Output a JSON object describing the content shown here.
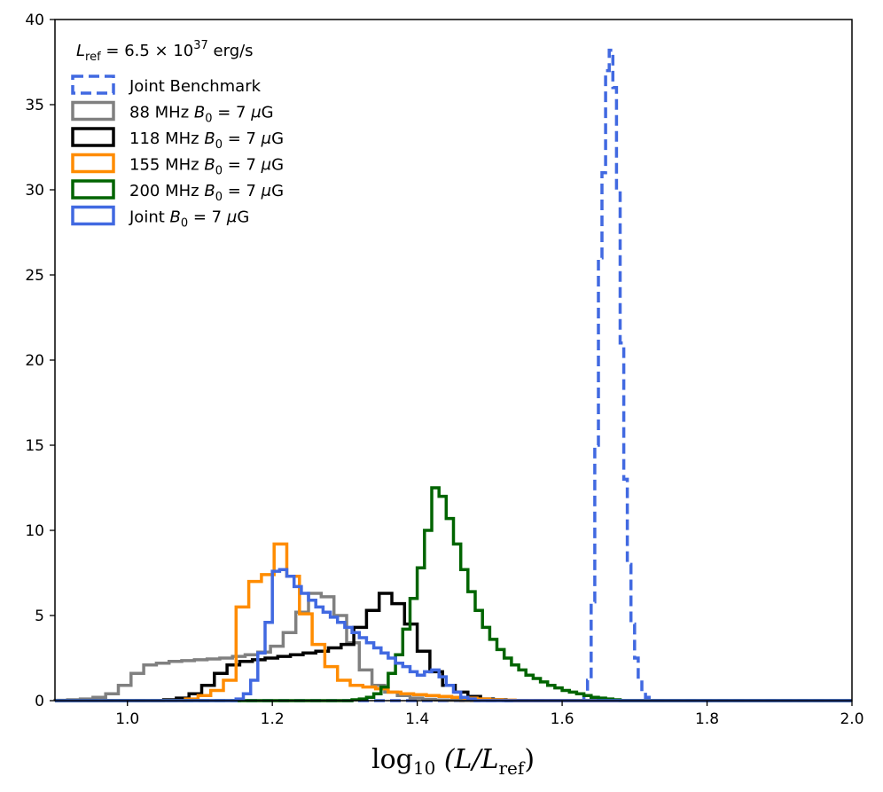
{
  "chart_data": {
    "type": "histogram-step",
    "title": "",
    "xlabel": "log10 (L/Lref)",
    "xlabel_parts": {
      "prefix": "log",
      "sub": "10",
      "mid": " (L/L",
      "sub2": "ref",
      "suffix": ")"
    },
    "ylabel": "",
    "xlim": [
      0.9,
      2.0
    ],
    "ylim": [
      0,
      40
    ],
    "xticks": [
      "1.0",
      "1.2",
      "1.4",
      "1.6",
      "1.8",
      "2.0"
    ],
    "yticks": [
      "0",
      "5",
      "10",
      "15",
      "20",
      "25",
      "30",
      "35",
      "40"
    ],
    "legend_placement": "top-left",
    "legend_title": "Lref = 6.5 × 10^37 erg/s",
    "legend_title_parts": {
      "lhs": "L",
      "lhs_sub": "ref",
      "eq": " = 6.5 × 10",
      "exp": "37",
      "unit": " erg/s"
    },
    "series": [
      {
        "name": "Joint Benchmark",
        "color": "#4169e1",
        "style": "dashed",
        "edges_start": 1.63,
        "bin_width": 0.005,
        "values": [
          0.3,
          1.2,
          5.8,
          15.0,
          26.0,
          31.0,
          37.0,
          38.2,
          36.0,
          30.0,
          21.0,
          13.0,
          8.0,
          4.5,
          2.5,
          1.2,
          0.5,
          0.2
        ]
      },
      {
        "name": "88 MHz B0 = 7 μG",
        "color": "#808080",
        "style": "solid",
        "edges_start": 0.9,
        "bin_width": 0.0175,
        "values": [
          0.02,
          0.05,
          0.1,
          0.2,
          0.4,
          0.9,
          1.6,
          2.1,
          2.2,
          2.3,
          2.35,
          2.4,
          2.45,
          2.5,
          2.6,
          2.7,
          2.85,
          3.2,
          4.0,
          5.2,
          6.3,
          6.1,
          5.0,
          3.4,
          1.8,
          0.9,
          0.5,
          0.3,
          0.15,
          0.08,
          0.04,
          0.02
        ]
      },
      {
        "name": "118 MHz B0 = 7 μG",
        "color": "#000000",
        "style": "solid",
        "edges_start": 1.05,
        "bin_width": 0.0175,
        "values": [
          0.05,
          0.15,
          0.4,
          0.9,
          1.6,
          2.1,
          2.3,
          2.4,
          2.5,
          2.6,
          2.7,
          2.8,
          2.9,
          3.1,
          3.3,
          4.3,
          5.3,
          6.3,
          5.7,
          4.5,
          2.9,
          1.7,
          0.9,
          0.5,
          0.25,
          0.1,
          0.05
        ]
      },
      {
        "name": "155 MHz B0 = 7 μG",
        "color": "#ff8c00",
        "style": "solid",
        "edges_start": 1.08,
        "bin_width": 0.0175,
        "values": [
          0.1,
          0.3,
          0.6,
          1.2,
          5.5,
          7.0,
          7.4,
          9.2,
          7.3,
          5.1,
          3.3,
          2.0,
          1.2,
          0.9,
          0.8,
          0.7,
          0.5,
          0.4,
          0.35,
          0.3,
          0.25,
          0.2,
          0.15,
          0.1,
          0.05,
          0.03
        ]
      },
      {
        "name": "200 MHz B0 = 7 μG",
        "color": "#006400",
        "style": "solid",
        "edges_start": 1.31,
        "bin_width": 0.01,
        "values": [
          0.05,
          0.1,
          0.2,
          0.4,
          0.8,
          1.6,
          2.7,
          4.2,
          6.0,
          7.8,
          10.0,
          12.5,
          12.0,
          10.7,
          9.2,
          7.7,
          6.4,
          5.3,
          4.3,
          3.6,
          3.0,
          2.5,
          2.1,
          1.8,
          1.5,
          1.3,
          1.1,
          0.9,
          0.75,
          0.6,
          0.5,
          0.4,
          0.3,
          0.2,
          0.15,
          0.1,
          0.05
        ]
      },
      {
        "name": "Joint B0 = 7 μG",
        "color": "#4169e1",
        "style": "solid",
        "edges_start": 1.15,
        "bin_width": 0.01,
        "values": [
          0.1,
          0.4,
          1.2,
          2.8,
          4.6,
          7.6,
          7.7,
          7.3,
          6.7,
          6.3,
          5.9,
          5.5,
          5.2,
          4.9,
          4.6,
          4.3,
          4.0,
          3.7,
          3.4,
          3.1,
          2.8,
          2.5,
          2.2,
          2.0,
          1.7,
          1.5,
          1.7,
          1.8,
          1.4,
          0.9,
          0.5,
          0.2,
          0.1
        ]
      }
    ]
  },
  "legend_entries": [
    {
      "label": "Joint Benchmark",
      "parts": {
        "text": "Joint Benchmark"
      }
    },
    {
      "label": "88 MHz B0 = 7 μG",
      "parts": {
        "pre": "88 MHz ",
        "var": "B",
        "sub": "0",
        "post": " = 7 ",
        "mu": "μ",
        "unit": "G"
      }
    },
    {
      "label": "118 MHz B0 = 7 μG",
      "parts": {
        "pre": "118 MHz ",
        "var": "B",
        "sub": "0",
        "post": " = 7 ",
        "mu": "μ",
        "unit": "G"
      }
    },
    {
      "label": "155 MHz B0 = 7 μG",
      "parts": {
        "pre": "155 MHz ",
        "var": "B",
        "sub": "0",
        "post": " = 7 ",
        "mu": "μ",
        "unit": "G"
      }
    },
    {
      "label": "200 MHz B0 = 7 μG",
      "parts": {
        "pre": "200 MHz ",
        "var": "B",
        "sub": "0",
        "post": " = 7 ",
        "mu": "μ",
        "unit": "G"
      }
    },
    {
      "label": "Joint B0 = 7 μG",
      "parts": {
        "pre": "Joint ",
        "var": "B",
        "sub": "0",
        "post": " = 7 ",
        "mu": "μ",
        "unit": "G"
      }
    }
  ]
}
